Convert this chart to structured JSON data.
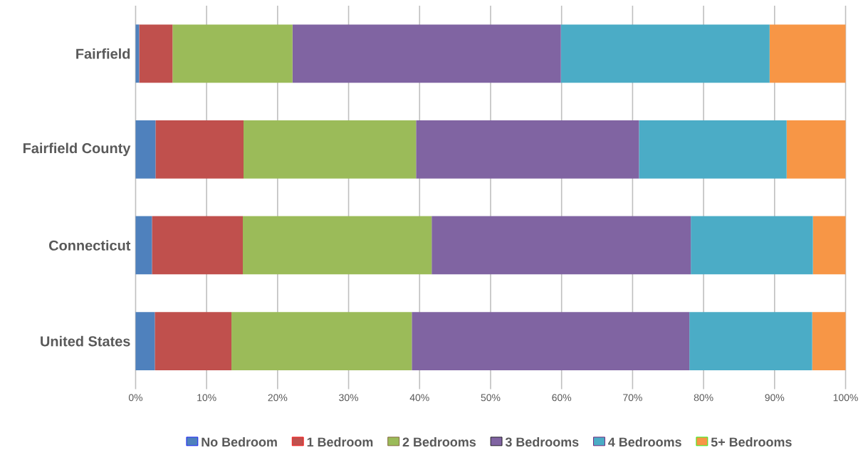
{
  "chart_data": {
    "type": "bar",
    "orientation": "horizontal",
    "stacked": true,
    "categories": [
      "Fairfield",
      "Fairfield County",
      "Connecticut",
      "United States"
    ],
    "series": [
      {
        "name": "No Bedroom",
        "color": "#4f81bd",
        "values": [
          0.5,
          2.8,
          2.3,
          2.7
        ]
      },
      {
        "name": "1 Bedroom",
        "color": "#c0504d",
        "values": [
          4.7,
          12.4,
          12.8,
          10.8
        ]
      },
      {
        "name": "2 Bedrooms",
        "color": "#9bbb59",
        "values": [
          16.9,
          24.3,
          26.6,
          25.4
        ]
      },
      {
        "name": "3 Bedrooms",
        "color": "#8064a2",
        "values": [
          37.8,
          31.4,
          36.5,
          39.1
        ]
      },
      {
        "name": "4 Bedrooms",
        "color": "#4bacc6",
        "values": [
          29.4,
          20.8,
          17.2,
          17.3
        ]
      },
      {
        "name": "5+ Bedrooms",
        "color": "#f79646",
        "values": [
          10.7,
          8.3,
          4.6,
          4.7
        ]
      }
    ],
    "xlim": [
      0,
      100
    ],
    "xticks": [
      {
        "value": 0,
        "label": "0%"
      },
      {
        "value": 10,
        "label": "10%"
      },
      {
        "value": 20,
        "label": "20%"
      },
      {
        "value": 30,
        "label": "30%"
      },
      {
        "value": 40,
        "label": "40%"
      },
      {
        "value": 50,
        "label": "50%"
      },
      {
        "value": 60,
        "label": "60%"
      },
      {
        "value": 70,
        "label": "70%"
      },
      {
        "value": 80,
        "label": "80%"
      },
      {
        "value": 90,
        "label": "90%"
      },
      {
        "value": 100,
        "label": "100%"
      }
    ],
    "grid": "x",
    "legend": "bottom"
  }
}
